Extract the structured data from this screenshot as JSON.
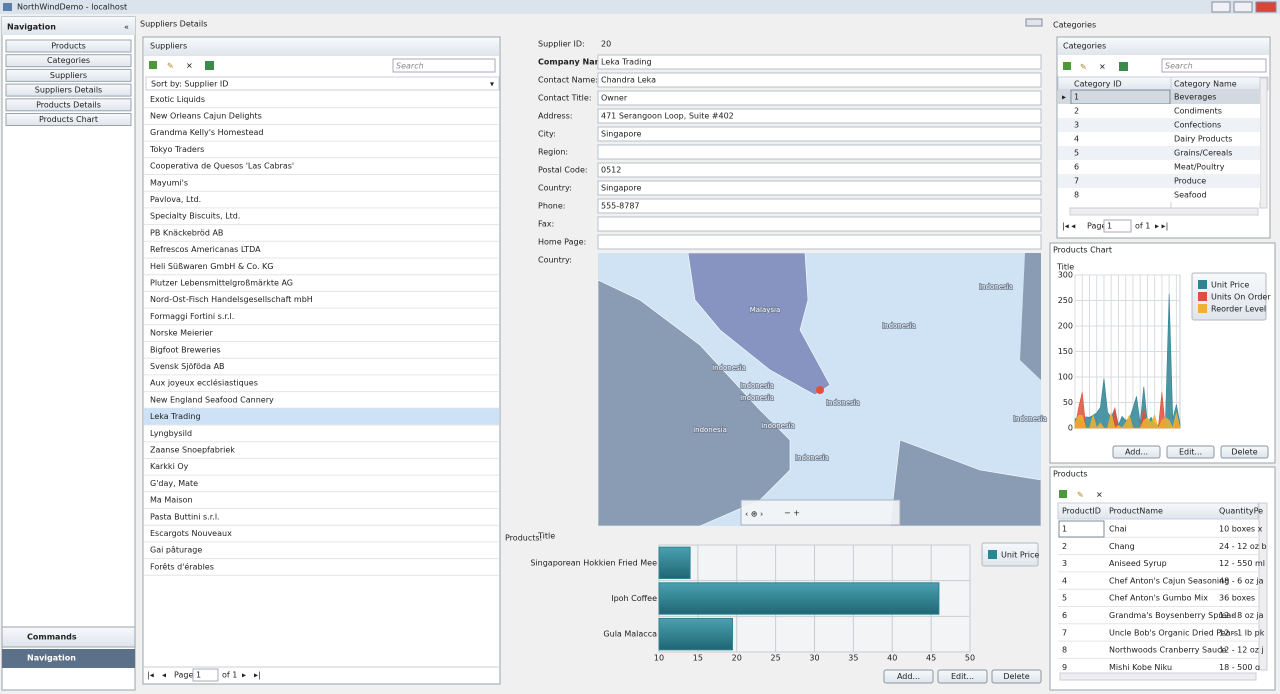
{
  "window": {
    "title": "NorthWindDemo - localhost"
  },
  "navigation": {
    "title": "Navigation",
    "items": [
      "Products",
      "Categories",
      "Suppliers",
      "Suppliers Details",
      "Products Details",
      "Products Chart"
    ],
    "commands": "Commands",
    "footer": "Navigation"
  },
  "suppliers_details": {
    "title": "Suppliers Details",
    "suppliers": {
      "title": "Suppliers",
      "search": "Search",
      "sort": "Sort by: Supplier ID",
      "items": [
        "Exotic Liquids",
        "New Orleans Cajun Delights",
        "Grandma Kelly's Homestead",
        "Tokyo Traders",
        "Cooperativa de Quesos 'Las Cabras'",
        "Mayumi's",
        "Pavlova, Ltd.",
        "Specialty Biscuits, Ltd.",
        "PB Knäckebröd AB",
        "Refrescos Americanas LTDA",
        "Heli Süßwaren GmbH & Co. KG",
        "Plutzer Lebensmittelgroßmärkte AG",
        "Nord-Ost-Fisch Handelsgesellschaft mbH",
        "Formaggi Fortini s.r.l.",
        "Norske Meierier",
        "Bigfoot Breweries",
        "Svensk Sjöföda AB",
        "Aux joyeux ecclésiastiques",
        "New England Seafood Cannery",
        "Leka Trading",
        "Lyngbysild",
        "Zaanse Snoepfabriek",
        "Karkki Oy",
        "G'day, Mate",
        "Ma Maison",
        "Pasta Buttini s.r.l.",
        "Escargots Nouveaux",
        "Gai pâturage",
        "Forêts d'érables"
      ],
      "selected": 19,
      "pager": {
        "page": "Page",
        "number": 1,
        "of": "of 1"
      }
    },
    "form": {
      "fields": [
        {
          "label": "Supplier ID:",
          "value": "20"
        },
        {
          "label": "Company Name:",
          "value": "Leka Trading"
        },
        {
          "label": "Contact Name:",
          "value": "Chandra Leka"
        },
        {
          "label": "Contact Title:",
          "value": "Owner"
        },
        {
          "label": "Address:",
          "value": "471 Serangoon Loop, Suite #402"
        },
        {
          "label": "City:",
          "value": "Singapore"
        },
        {
          "label": "Region:"
        },
        {
          "label": "Postal Code:",
          "value": "0512"
        },
        {
          "label": "Country:",
          "value": "Singapore"
        },
        {
          "label": "Phone:",
          "value": "555-8787"
        },
        {
          "label": "Fax:"
        },
        {
          "label": "Home Page:"
        },
        {
          "label": "Country:"
        }
      ]
    },
    "map": {
      "labels": [
        "Malaysia",
        "Indonesia",
        "Indonesia",
        "Indonesia",
        "Indonesia",
        "Indonesia",
        "Indonesia",
        "Indonesia",
        "Indonesia",
        "Indonesia",
        "Indonesia"
      ]
    },
    "products_label": "Products:",
    "buttons": [
      "Add...",
      "Edit...",
      "Delete"
    ]
  },
  "categories": {
    "title": "Categories",
    "grid_title": "Categories",
    "search": "Search",
    "columns": [
      "Category ID",
      "Category Name"
    ],
    "rows": [
      [
        1,
        "Beverages"
      ],
      [
        2,
        "Condiments"
      ],
      [
        3,
        "Confections"
      ],
      [
        4,
        "Dairy Products"
      ],
      [
        5,
        "Grains/Cereals"
      ],
      [
        6,
        "Meat/Poultry"
      ],
      [
        7,
        "Produce"
      ],
      [
        8,
        "Seafood"
      ]
    ],
    "pager": {
      "page": "Page",
      "number": 1,
      "of": "of 1"
    }
  },
  "products_chart": {
    "title": "Products Chart",
    "buttons": [
      "Add...",
      "Edit...",
      "Delete"
    ]
  },
  "products": {
    "title": "Products",
    "columns": [
      "ProductID",
      "ProductName",
      "QuantityPe"
    ],
    "rows": [
      [
        1,
        "Chai",
        "10 boxes x"
      ],
      [
        2,
        "Chang",
        "24 - 12 oz b"
      ],
      [
        3,
        "Aniseed Syrup",
        "12 - 550 ml"
      ],
      [
        4,
        "Chef Anton's Cajun Seasoning",
        "48 - 6 oz ja"
      ],
      [
        5,
        "Chef Anton's Gumbo Mix",
        "36 boxes"
      ],
      [
        6,
        "Grandma's Boysenberry Spread",
        "12 - 8 oz ja"
      ],
      [
        7,
        "Uncle Bob's Organic Dried Pears",
        "12 - 1 lb pk"
      ],
      [
        8,
        "Northwoods Cranberry Sauce",
        "12 - 12 oz j"
      ],
      [
        9,
        "Mishi Kobe Niku",
        "18 - 500 g"
      ]
    ]
  },
  "chart_data": [
    {
      "type": "bar",
      "orientation": "horizontal",
      "title": "Title",
      "categories": [
        "Singaporean Hokkien Fried Mee",
        "Ipoh Coffee",
        "Gula Malacca"
      ],
      "series": [
        {
          "name": "Unit Price",
          "color": "#2f8494",
          "values": [
            14,
            46,
            19.45
          ]
        }
      ],
      "xlim": [
        10,
        50
      ],
      "xticks": [
        10,
        15,
        20,
        25,
        30,
        35,
        40,
        45,
        50
      ],
      "grid": true
    },
    {
      "type": "area",
      "title": "Title",
      "categories": [
        null,
        null,
        null,
        null,
        null,
        null,
        null,
        null,
        null,
        null,
        null,
        null,
        null,
        null,
        null,
        null,
        null,
        null,
        null,
        null,
        null,
        null,
        null,
        null,
        null,
        null,
        null,
        null,
        null,
        null
      ],
      "series": [
        {
          "name": "Unit Price",
          "color": "#2f8494",
          "values": [
            18,
            19,
            10,
            22,
            21,
            25,
            30,
            40,
            97,
            31,
            21,
            38,
            6,
            23,
            15,
            17,
            39,
            62,
            9,
            81,
            10,
            21,
            9,
            5,
            14,
            18,
            263,
            18,
            46,
            9
          ]
        },
        {
          "name": "Units On Order",
          "color": "#e0503a",
          "values": [
            0,
            40,
            70,
            0,
            0,
            0,
            0,
            0,
            0,
            0,
            0,
            40,
            0,
            0,
            0,
            0,
            0,
            0,
            0,
            40,
            0,
            0,
            0,
            0,
            70,
            0,
            0,
            0,
            10,
            0
          ]
        },
        {
          "name": "Reorder Level",
          "color": "#f0b030",
          "values": [
            10,
            25,
            25,
            0,
            0,
            25,
            0,
            10,
            0,
            0,
            30,
            0,
            5,
            0,
            10,
            25,
            0,
            0,
            0,
            15,
            20,
            10,
            25,
            0,
            15,
            20,
            15,
            0,
            30,
            0
          ]
        }
      ],
      "ylim": [
        0,
        300
      ],
      "yticks": [
        0,
        50,
        100,
        150,
        200,
        250,
        300
      ],
      "grid": true
    }
  ]
}
